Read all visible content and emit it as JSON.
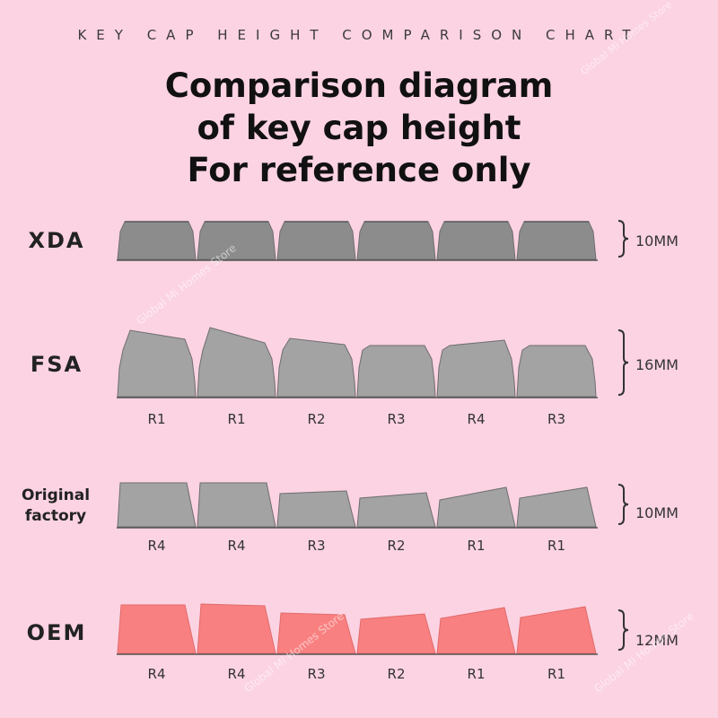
{
  "header": {
    "subtitle": "KEY CAP HEIGHT COMPARISON CHART",
    "title_lines": [
      "Comparison diagram",
      "of key cap height",
      "For reference only"
    ]
  },
  "watermark": "Global Mi Homes Store",
  "colors": {
    "background": "#fcd3e3",
    "gray_key": "#9e9e9e",
    "xda_key": "#8c8c8c",
    "oem_key": "#f98080"
  },
  "profiles": [
    {
      "name": "XDA",
      "name_lines": [
        "XDA"
      ],
      "height_label": "10MM",
      "color": "#8c8c8c",
      "row_labels": []
    },
    {
      "name": "FSA",
      "name_lines": [
        "FSA"
      ],
      "height_label": "16MM",
      "color": "#a3a3a3",
      "row_labels": [
        "R1",
        "R1",
        "R2",
        "R3",
        "R4",
        "R3"
      ]
    },
    {
      "name": "Original factory",
      "name_lines": [
        "Original",
        "factory"
      ],
      "height_label": "10MM",
      "color": "#a3a3a3",
      "row_labels": [
        "R4",
        "R4",
        "R3",
        "R2",
        "R1",
        "R1"
      ]
    },
    {
      "name": "OEM",
      "name_lines": [
        "OEM"
      ],
      "height_label": "12MM",
      "color": "#f98080",
      "row_labels": [
        "R4",
        "R4",
        "R3",
        "R2",
        "R1",
        "R1"
      ]
    }
  ]
}
